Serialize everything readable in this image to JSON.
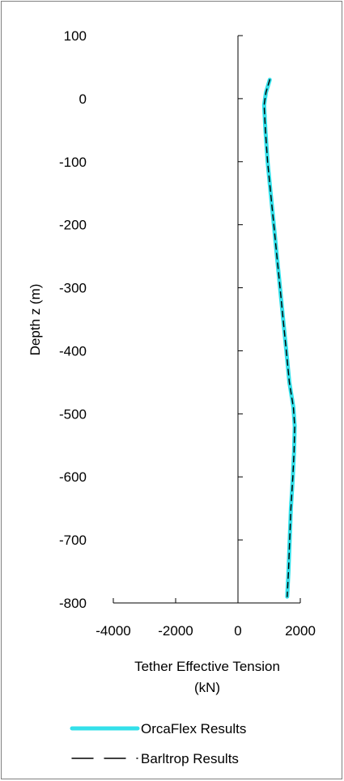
{
  "chart_data": {
    "type": "line",
    "xlabel_line1": "Tether Effective Tension",
    "xlabel_line2": "(kN)",
    "ylabel": "Depth z (m)",
    "xlim": [
      -4000,
      2000
    ],
    "ylim": [
      -800,
      100
    ],
    "x_ticks": [
      "-4000",
      "-2000",
      "0",
      "2000"
    ],
    "y_ticks": [
      "100",
      "0",
      "-100",
      "-200",
      "-300",
      "-400",
      "-500",
      "-600",
      "-700",
      "-800"
    ],
    "x_tick_values": [
      -4000,
      -2000,
      0,
      2000
    ],
    "y_tick_values": [
      100,
      0,
      -100,
      -200,
      -300,
      -400,
      -500,
      -600,
      -700,
      -800
    ],
    "legend": "bottom",
    "series": [
      {
        "name": "OrcaFlex Results",
        "color": "#33e0ea",
        "style": "solid-thick",
        "points": [
          [
            1020,
            30
          ],
          [
            900,
            10
          ],
          [
            840,
            -10
          ],
          [
            880,
            -50
          ],
          [
            950,
            -100
          ],
          [
            1050,
            -150
          ],
          [
            1150,
            -200
          ],
          [
            1250,
            -250
          ],
          [
            1350,
            -300
          ],
          [
            1450,
            -350
          ],
          [
            1550,
            -400
          ],
          [
            1650,
            -450
          ],
          [
            1780,
            -490
          ],
          [
            1820,
            -520
          ],
          [
            1800,
            -560
          ],
          [
            1760,
            -600
          ],
          [
            1700,
            -650
          ],
          [
            1660,
            -700
          ],
          [
            1620,
            -750
          ],
          [
            1580,
            -790
          ]
        ]
      },
      {
        "name": "Barltrop Results",
        "color": "#000000",
        "style": "dashed",
        "points": [
          [
            1020,
            30
          ],
          [
            900,
            10
          ],
          [
            840,
            -10
          ],
          [
            880,
            -50
          ],
          [
            950,
            -100
          ],
          [
            1050,
            -150
          ],
          [
            1150,
            -200
          ],
          [
            1250,
            -250
          ],
          [
            1350,
            -300
          ],
          [
            1450,
            -350
          ],
          [
            1550,
            -400
          ],
          [
            1650,
            -450
          ],
          [
            1780,
            -490
          ],
          [
            1820,
            -520
          ],
          [
            1800,
            -560
          ],
          [
            1760,
            -600
          ],
          [
            1700,
            -650
          ],
          [
            1660,
            -700
          ],
          [
            1620,
            -750
          ],
          [
            1580,
            -790
          ]
        ]
      }
    ]
  }
}
